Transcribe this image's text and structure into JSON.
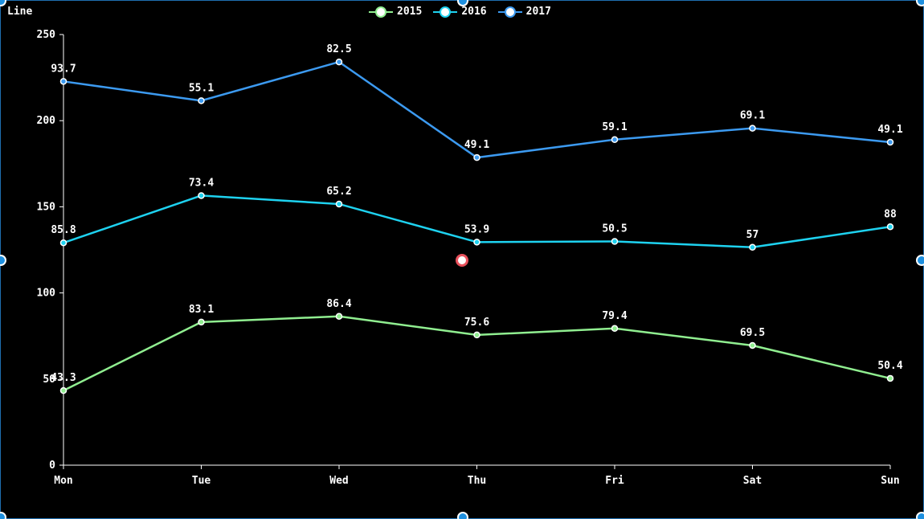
{
  "title": "Line",
  "chart_data": {
    "type": "line",
    "title": "Line",
    "categories": [
      "Mon",
      "Tue",
      "Wed",
      "Thu",
      "Fri",
      "Sat",
      "Sun"
    ],
    "stacked": true,
    "ylim": [
      0,
      250
    ],
    "yticks": [
      0,
      50,
      100,
      150,
      200,
      250
    ],
    "xlabel": "",
    "ylabel": "",
    "legend_position": "top-center",
    "series": [
      {
        "name": "2015",
        "color": "#90ee90",
        "values": [
          43.3,
          83.1,
          86.4,
          75.6,
          79.4,
          69.5,
          50.4
        ]
      },
      {
        "name": "2016",
        "color": "#1ed2f0",
        "values": [
          85.8,
          73.4,
          65.2,
          53.9,
          50.5,
          57,
          88
        ]
      },
      {
        "name": "2017",
        "color": "#3c9af0",
        "values": [
          93.7,
          55.1,
          82.5,
          49.1,
          59.1,
          69.1,
          49.1
        ]
      }
    ]
  }
}
